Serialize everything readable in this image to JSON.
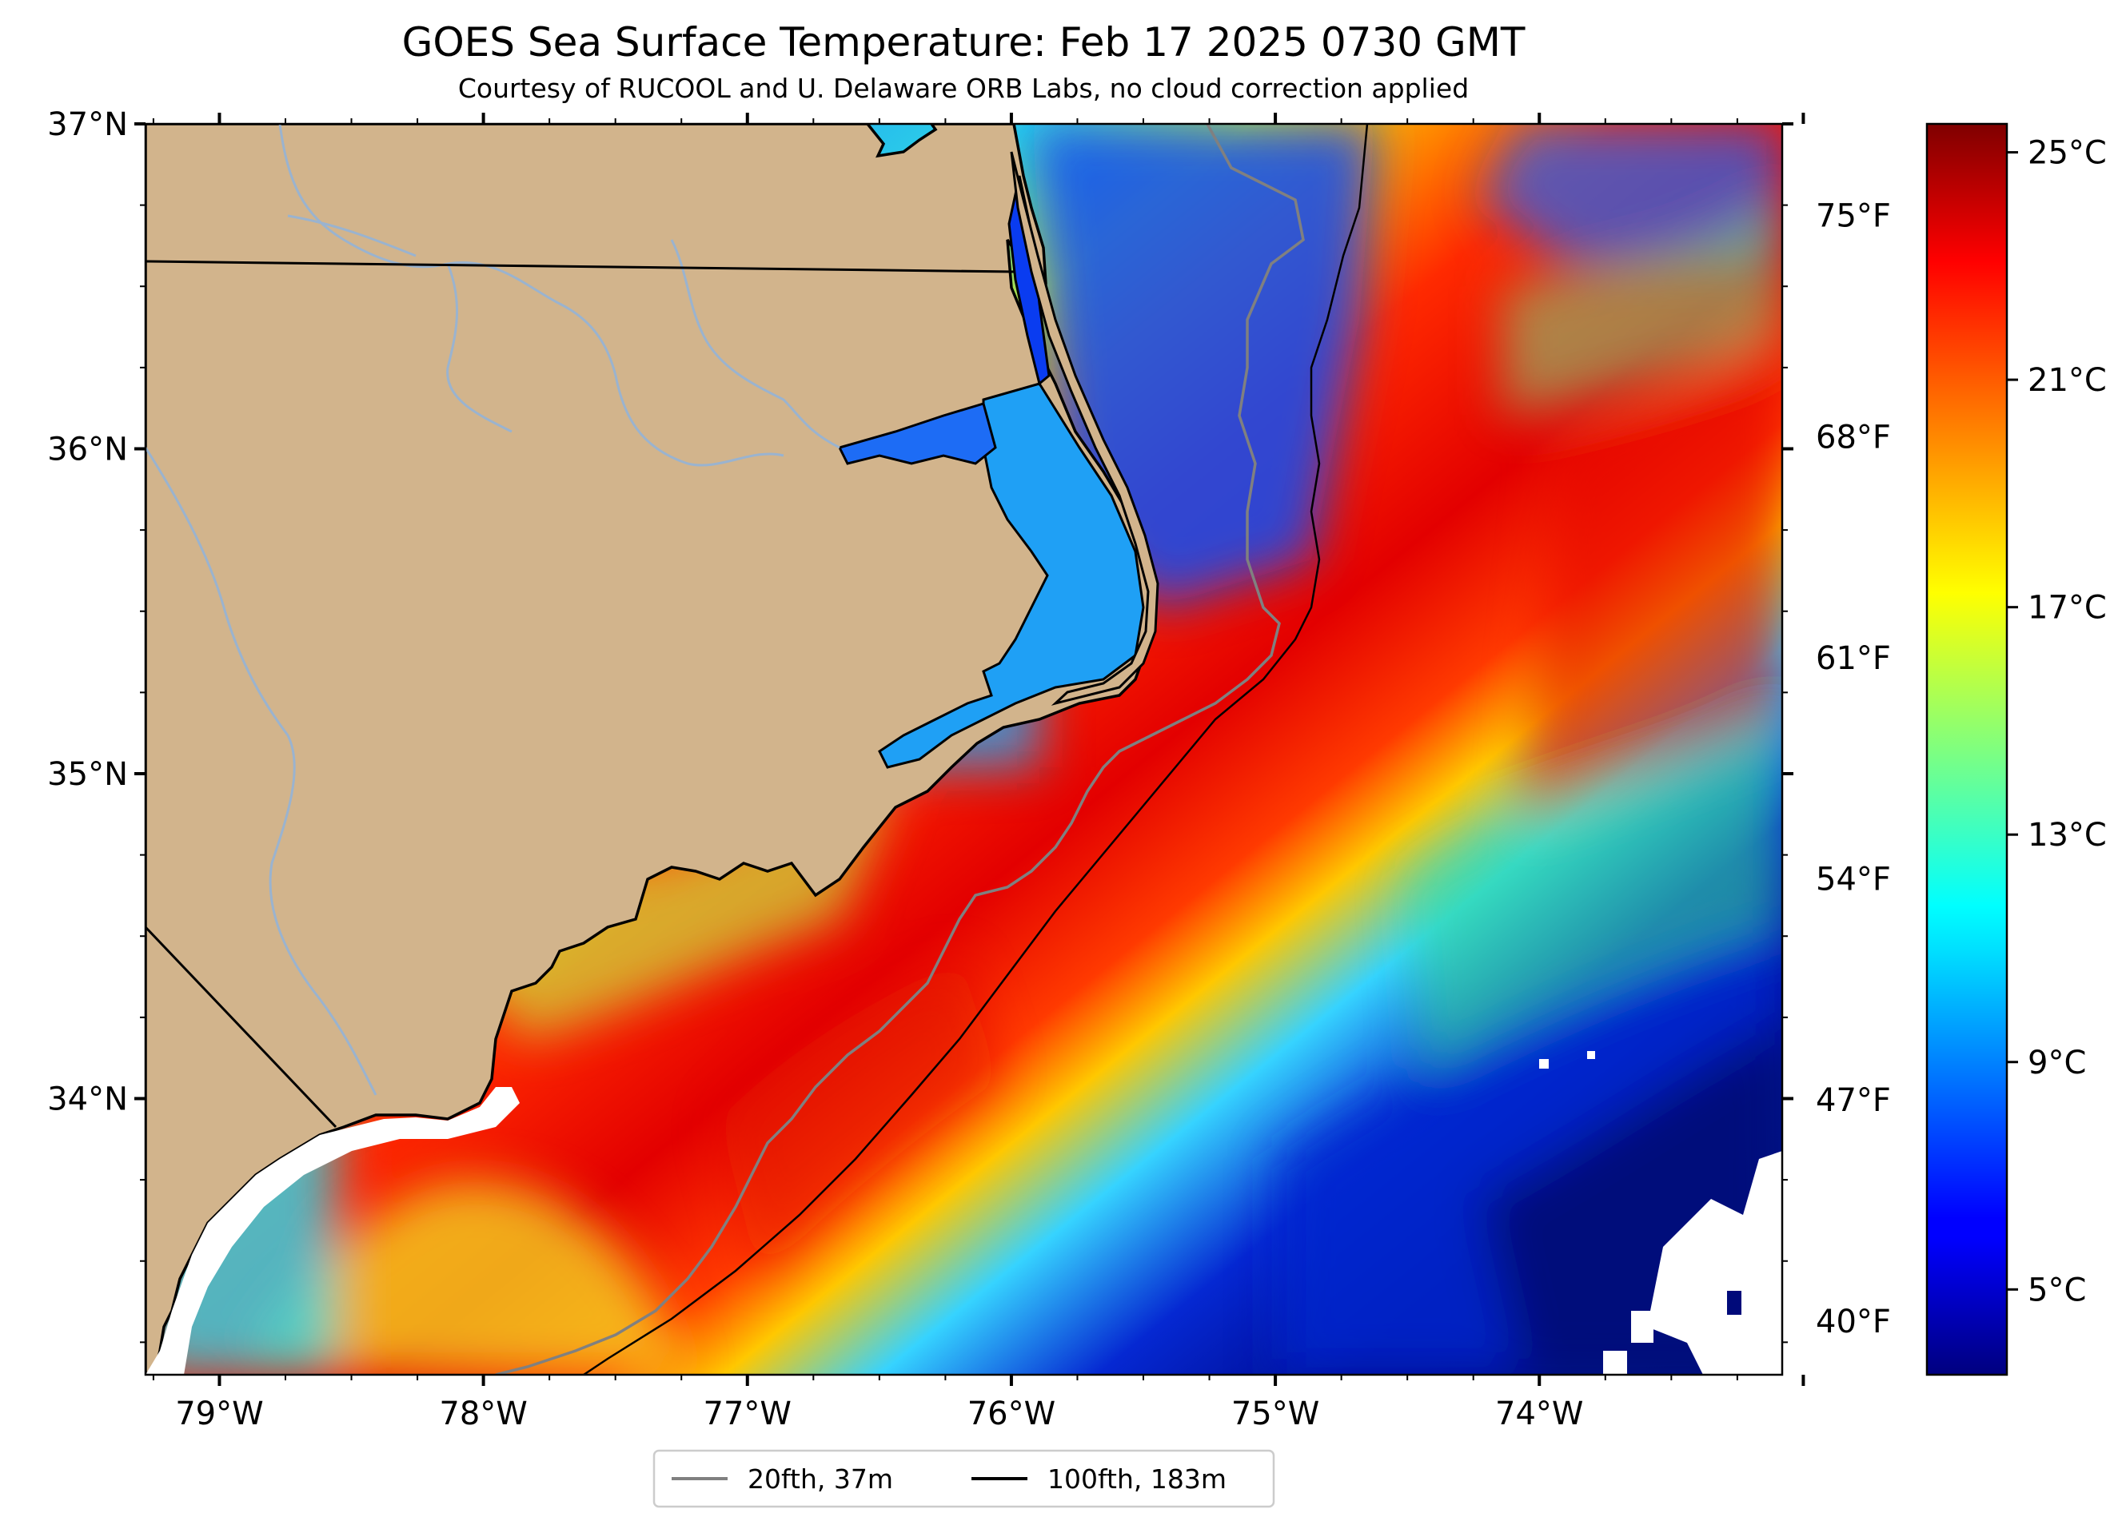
{
  "title": "GOES Sea Surface Temperature: Feb 17 2025 0730 GMT",
  "subtitle": "Courtesy of RUCOOL and U. Delaware ORB Labs, no cloud correction applied",
  "map": {
    "lon_range": [
      -79.28,
      -73.08
    ],
    "lat_range": [
      33.15,
      37.0
    ],
    "lon_ticks": [
      {
        "value": -79,
        "label": "79°W"
      },
      {
        "value": -78,
        "label": "78°W"
      },
      {
        "value": -77,
        "label": "77°W"
      },
      {
        "value": -76,
        "label": "76°W"
      },
      {
        "value": -75,
        "label": "75°W"
      },
      {
        "value": -74,
        "label": "74°W"
      }
    ],
    "lat_ticks": [
      {
        "value": 37,
        "label": "37°N"
      },
      {
        "value": 36,
        "label": "36°N"
      },
      {
        "value": 35,
        "label": "35°N"
      },
      {
        "value": 34,
        "label": "34°N"
      }
    ],
    "fahrenheit_ticks": [
      {
        "value": 75,
        "label": "75°F"
      },
      {
        "value": 68,
        "label": "68°F"
      },
      {
        "value": 61,
        "label": "61°F"
      },
      {
        "value": 54,
        "label": "54°F"
      },
      {
        "value": 47,
        "label": "47°F"
      },
      {
        "value": 40,
        "label": "40°F"
      }
    ],
    "land_color": "#d2b48c",
    "river_color": "#9ab3cf"
  },
  "colorbar": {
    "colormap": "jet",
    "range_c": [
      3.5,
      25.5
    ],
    "ticks": [
      {
        "value": 25,
        "label": "25°C"
      },
      {
        "value": 21,
        "label": "21°C"
      },
      {
        "value": 17,
        "label": "17°C"
      },
      {
        "value": 13,
        "label": "13°C"
      },
      {
        "value": 9,
        "label": "9°C"
      },
      {
        "value": 5,
        "label": "5°C"
      }
    ]
  },
  "legend": {
    "items": [
      {
        "label": "20fth, 37m",
        "color": "#808080"
      },
      {
        "label": "100fth, 183m",
        "color": "#000000"
      }
    ]
  }
}
